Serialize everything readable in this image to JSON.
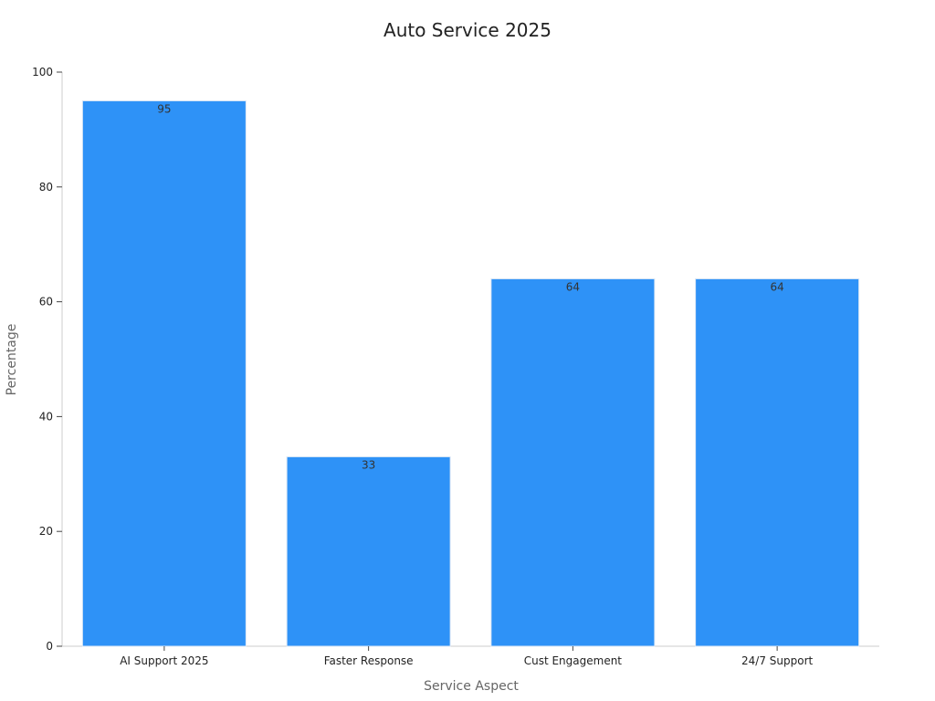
{
  "chart_data": {
    "type": "bar",
    "title": "Auto Service 2025",
    "xlabel": "Service Aspect",
    "ylabel": "Percentage",
    "categories": [
      "AI Support 2025",
      "Faster Response",
      "Cust Engagement",
      "24/7 Support"
    ],
    "values": [
      95,
      33,
      64,
      64
    ],
    "data_labels": [
      "95",
      "33",
      "64",
      "64"
    ],
    "ylim": [
      0,
      100
    ],
    "yticks": [
      0,
      20,
      40,
      60,
      80,
      100
    ],
    "grid": false,
    "legend": "none",
    "colors": {
      "bar_fill": "#2e92f7",
      "bar_edge": "#dde8f5"
    }
  }
}
